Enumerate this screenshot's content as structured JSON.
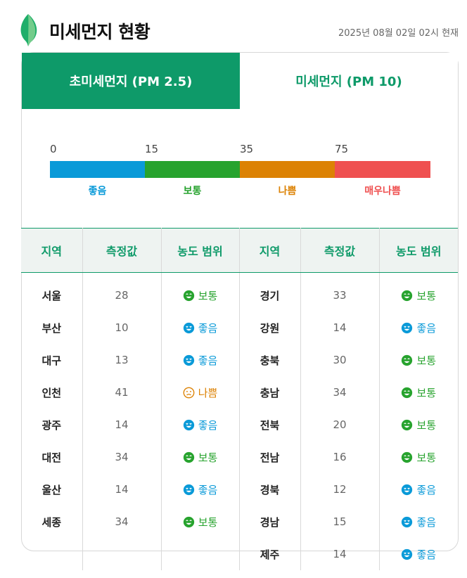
{
  "header": {
    "title": "미세먼지 현황",
    "timestamp": "2025년 08월 02일 02시 현재"
  },
  "tabs": [
    {
      "label": "초미세먼지 (PM 2.5)",
      "active": true
    },
    {
      "label": "미세먼지 (PM 10)",
      "active": false
    }
  ],
  "scale": {
    "ticks": [
      "0",
      "15",
      "35",
      "75"
    ],
    "levels": [
      {
        "label": "좋음",
        "color": "#0a9ad8"
      },
      {
        "label": "보통",
        "color": "#27a32e"
      },
      {
        "label": "나쁨",
        "color": "#dc8204"
      },
      {
        "label": "매우나쁨",
        "color": "#ef5050"
      }
    ]
  },
  "table": {
    "headers": [
      "지역",
      "측정값",
      "농도 범위",
      "지역",
      "측정값",
      "농도 범위"
    ],
    "left_rows": [
      {
        "region": "서울",
        "value": "28",
        "status": "보통",
        "face": "happy-face-icon",
        "color": "#27a32e"
      },
      {
        "region": "부산",
        "value": "10",
        "status": "좋음",
        "face": "love-face-icon",
        "color": "#0a9ad8"
      },
      {
        "region": "대구",
        "value": "13",
        "status": "좋음",
        "face": "love-face-icon",
        "color": "#0a9ad8"
      },
      {
        "region": "인천",
        "value": "41",
        "status": "나쁨",
        "face": "sad-face-icon",
        "color": "#dc8204"
      },
      {
        "region": "광주",
        "value": "14",
        "status": "좋음",
        "face": "love-face-icon",
        "color": "#0a9ad8"
      },
      {
        "region": "대전",
        "value": "34",
        "status": "보통",
        "face": "happy-face-icon",
        "color": "#27a32e"
      },
      {
        "region": "울산",
        "value": "14",
        "status": "좋음",
        "face": "love-face-icon",
        "color": "#0a9ad8"
      },
      {
        "region": "세종",
        "value": "34",
        "status": "보통",
        "face": "happy-face-icon",
        "color": "#27a32e"
      }
    ],
    "right_rows": [
      {
        "region": "경기",
        "value": "33",
        "status": "보통",
        "face": "happy-face-icon",
        "color": "#27a32e"
      },
      {
        "region": "강원",
        "value": "14",
        "status": "좋음",
        "face": "love-face-icon",
        "color": "#0a9ad8"
      },
      {
        "region": "충북",
        "value": "30",
        "status": "보통",
        "face": "happy-face-icon",
        "color": "#27a32e"
      },
      {
        "region": "충남",
        "value": "34",
        "status": "보통",
        "face": "happy-face-icon",
        "color": "#27a32e"
      },
      {
        "region": "전북",
        "value": "20",
        "status": "보통",
        "face": "happy-face-icon",
        "color": "#27a32e"
      },
      {
        "region": "전남",
        "value": "16",
        "status": "보통",
        "face": "happy-face-icon",
        "color": "#27a32e"
      },
      {
        "region": "경북",
        "value": "12",
        "status": "좋음",
        "face": "love-face-icon",
        "color": "#0a9ad8"
      },
      {
        "region": "경남",
        "value": "15",
        "status": "좋음",
        "face": "love-face-icon",
        "color": "#0a9ad8"
      },
      {
        "region": "제주",
        "value": "14",
        "status": "좋음",
        "face": "love-face-icon",
        "color": "#0a9ad8"
      }
    ]
  }
}
